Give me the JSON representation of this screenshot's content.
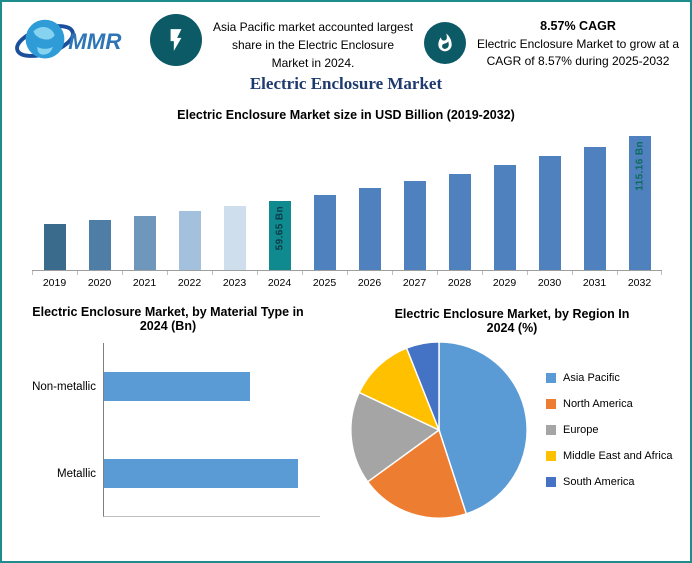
{
  "brand": {
    "logo_text": "MMR"
  },
  "header": {
    "left_note": "Asia Pacific market accounted largest share in the Electric Enclosure Market in 2024.",
    "cagr_title": "8.57% CAGR",
    "cagr_note": "Electric Enclosure Market to grow at a CAGR of 8.57% during 2025-2032"
  },
  "title": "Electric Enclosure Market",
  "icons": {
    "logo": "globe-icon",
    "header_left": "lightning-bolt-icon",
    "header_right": "flame-icon"
  },
  "colors": {
    "border": "#1C8C8C",
    "icon_circle": "#0B5A66",
    "title": "#1F3A6E"
  },
  "chart_data": [
    {
      "type": "bar",
      "title": "Electric Enclosure Market size in USD Billion (2019-2032)",
      "categories": [
        "2019",
        "2020",
        "2021",
        "2022",
        "2023",
        "2024",
        "2025",
        "2026",
        "2027",
        "2028",
        "2029",
        "2030",
        "2031",
        "2032"
      ],
      "values": [
        39.6,
        43.0,
        46.7,
        50.7,
        55.0,
        59.65,
        64.76,
        70.31,
        76.34,
        82.88,
        89.99,
        97.7,
        106.07,
        115.16
      ],
      "bar_colors": [
        "#3A6A8C",
        "#4E7EA6",
        "#6F97BC",
        "#A3C0DC",
        "#CFDEED",
        "#0F8B90",
        "#4E81BD",
        "#4E81BD",
        "#4E81BD",
        "#4E81BD",
        "#4E81BD",
        "#4E81BD",
        "#4E81BD",
        "#4E81BD"
      ],
      "labeled_bars": {
        "2024": {
          "text": "59.65 Bn",
          "color": "#0D3B49"
        },
        "2032": {
          "text": "115.16 Bn",
          "color": "#0F6A5E"
        }
      },
      "xlabel": "",
      "ylabel": "",
      "ylim": [
        0,
        122
      ],
      "grid": false,
      "legend": false
    },
    {
      "type": "bar-horizontal",
      "title": "Electric Enclosure Market, by Material Type in 2024 (Bn)",
      "categories": [
        "Non-metallic",
        "Metallic"
      ],
      "values": [
        25.6,
        34.1
      ],
      "xlim": [
        0,
        38
      ],
      "bar_color": "#5B9BD5",
      "grid": false,
      "legend": false
    },
    {
      "type": "pie",
      "title": "Electric Enclosure Market, by Region In 2024 (%)",
      "labels": [
        "Asia Pacific",
        "North America",
        "Europe",
        "Middle East and Africa",
        "South America"
      ],
      "values": [
        45,
        20,
        17,
        12,
        6
      ],
      "colors": [
        "#5B9BD5",
        "#ED7D31",
        "#A5A5A5",
        "#FFC000",
        "#4472C4"
      ],
      "legend_position": "right"
    }
  ]
}
